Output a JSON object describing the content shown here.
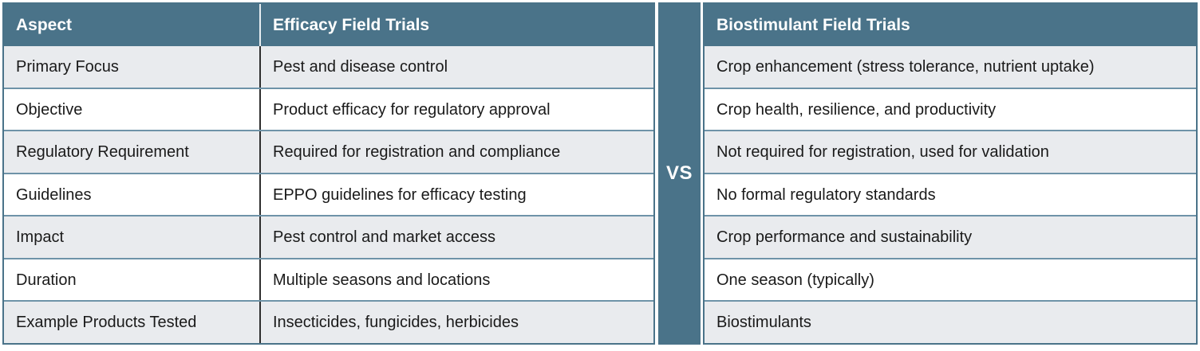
{
  "comparison": {
    "vs_label": "VS",
    "left_table": {
      "aspect_header": "Aspect",
      "value_header": "Efficacy Field Trials"
    },
    "right_table": {
      "value_header": "Biostimulant Field Trials"
    },
    "rows": [
      {
        "aspect": "Primary Focus",
        "efficacy": "Pest and disease control",
        "biostimulant": "Crop enhancement (stress tolerance, nutrient uptake)"
      },
      {
        "aspect": "Objective",
        "efficacy": "Product efficacy for regulatory approval",
        "biostimulant": "Crop health, resilience, and productivity"
      },
      {
        "aspect": "Regulatory Requirement",
        "efficacy": "Required for registration and compliance",
        "biostimulant": "Not required for registration, used for validation"
      },
      {
        "aspect": "Guidelines",
        "efficacy": "EPPO guidelines for efficacy testing",
        "biostimulant": "No formal regulatory standards"
      },
      {
        "aspect": "Impact",
        "efficacy": "Pest control and market access",
        "biostimulant": "Crop performance and sustainability"
      },
      {
        "aspect": "Duration",
        "efficacy": "Multiple seasons and locations",
        "biostimulant": "One season (typically)"
      },
      {
        "aspect": "Example Products Tested",
        "efficacy": "Insecticides, fungicides, herbicides",
        "biostimulant": "Biostimulants"
      }
    ]
  },
  "colors": {
    "header_bg": "#4A7389",
    "stripe_bg": "#4A7389",
    "row_bg": "#FFFFFF",
    "row_alt_bg": "#E9EBEE",
    "row_divider": "#6E93A8",
    "outer_border": "#4A7389",
    "column_divider_dark": "#2E2E2E",
    "header_text": "#FFFFFF",
    "body_text": "#1A1A1A"
  }
}
